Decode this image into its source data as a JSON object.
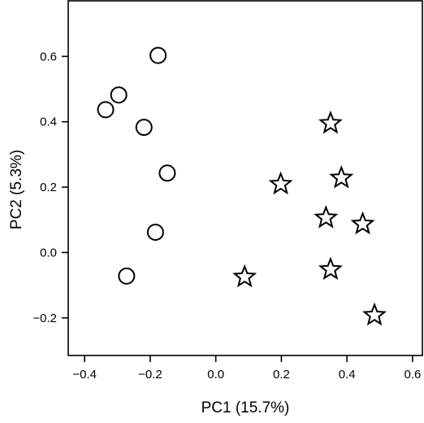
{
  "chart_data": {
    "type": "scatter",
    "title": "",
    "xlabel": "PC1 (15.7%)",
    "ylabel": "PC2 (5.3%)",
    "xlim": [
      -0.45,
      0.63
    ],
    "ylim": [
      -0.315,
      0.77
    ],
    "x_ticks": [
      -0.4,
      -0.2,
      0.0,
      0.2,
      0.4,
      0.6
    ],
    "x_tick_labels": [
      "−0.4",
      "−0.2",
      "0.0",
      "0.2",
      "0.4",
      "0.6"
    ],
    "y_ticks": [
      -0.2,
      0.0,
      0.2,
      0.4,
      0.6
    ],
    "y_tick_labels": [
      "−0.2",
      "0.0",
      "0.2",
      "0.4",
      "0.6"
    ],
    "grid": false,
    "legend": "none",
    "series": [
      {
        "marker": "circle",
        "points": [
          {
            "x": -0.176,
            "y": 0.603
          },
          {
            "x": -0.296,
            "y": 0.482
          },
          {
            "x": -0.336,
            "y": 0.437
          },
          {
            "x": -0.219,
            "y": 0.383
          },
          {
            "x": -0.148,
            "y": 0.243
          },
          {
            "x": -0.184,
            "y": 0.062
          },
          {
            "x": -0.272,
            "y": -0.072
          }
        ]
      },
      {
        "marker": "star",
        "points": [
          {
            "x": 0.35,
            "y": 0.395
          },
          {
            "x": 0.383,
            "y": 0.228
          },
          {
            "x": 0.198,
            "y": 0.209
          },
          {
            "x": 0.336,
            "y": 0.106
          },
          {
            "x": 0.448,
            "y": 0.087
          },
          {
            "x": 0.35,
            "y": -0.052
          },
          {
            "x": 0.088,
            "y": -0.075
          },
          {
            "x": 0.484,
            "y": -0.192
          }
        ]
      }
    ]
  }
}
